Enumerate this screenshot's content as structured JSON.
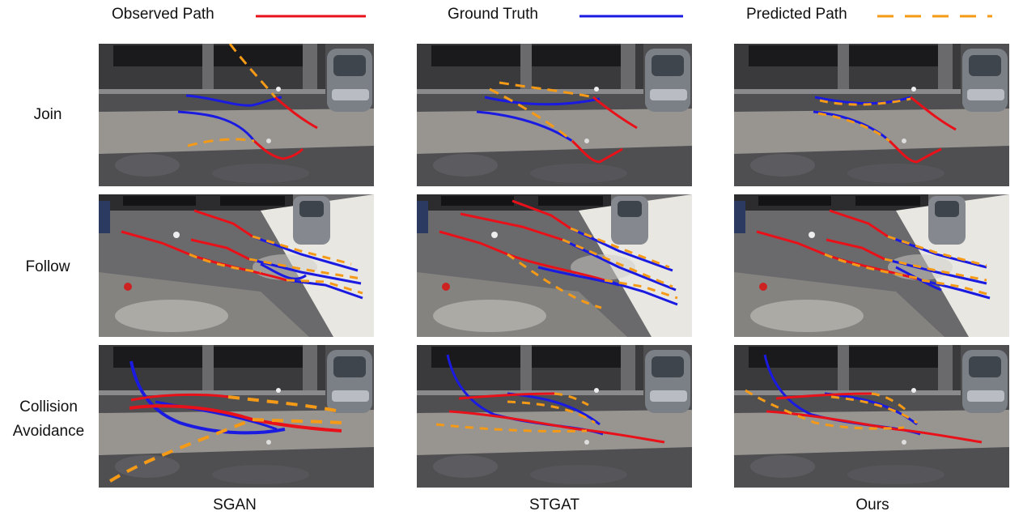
{
  "legend": {
    "observed": {
      "label": "Observed Path",
      "color": "#e8111a",
      "style": "solid"
    },
    "ground_truth": {
      "label": "Ground Truth",
      "color": "#1a1ae0",
      "style": "solid"
    },
    "predicted": {
      "label": "Predicted Path",
      "color": "#f59a16",
      "style": "dashed"
    }
  },
  "rows": [
    {
      "label": "Join"
    },
    {
      "label": "Follow"
    },
    {
      "label": "Collision Avoidance"
    }
  ],
  "columns": [
    {
      "label": "SGAN"
    },
    {
      "label": "STGAT"
    },
    {
      "label": "Ours"
    }
  ],
  "colors": {
    "observed": "#e8111a",
    "ground_truth": "#1a1ae0",
    "predicted": "#f59a16",
    "pavement_dark": "#4a4a4e",
    "pavement_light": "#c8c4bc",
    "building": "#2a2a2e",
    "car": "#8a8e94"
  }
}
